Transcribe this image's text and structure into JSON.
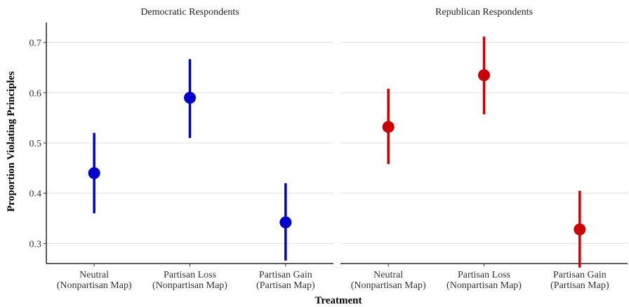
{
  "chart_data": {
    "type": "scatter",
    "subtype": "point-range",
    "ylabel": "Proportion Violating Principles",
    "xlabel": "Treatment",
    "ylim": [
      0.26,
      0.74
    ],
    "yticks": [
      0.3,
      0.4,
      0.5,
      0.6,
      0.7
    ],
    "grid": true,
    "categories": [
      [
        "Neutral",
        "(Nonpartisan Map)"
      ],
      [
        "Partisan Loss",
        "(Nonpartisan Map)"
      ],
      [
        "Partisan Gain",
        "(Partisan Map)"
      ]
    ],
    "panels": [
      {
        "title": "Democratic Respondents",
        "color": "#0000cc",
        "points": [
          {
            "estimate": 0.44,
            "lower": 0.36,
            "upper": 0.52
          },
          {
            "estimate": 0.59,
            "lower": 0.51,
            "upper": 0.667
          },
          {
            "estimate": 0.342,
            "lower": 0.266,
            "upper": 0.42
          }
        ]
      },
      {
        "title": "Republican Respondents",
        "color": "#cc0000",
        "points": [
          {
            "estimate": 0.532,
            "lower": 0.458,
            "upper": 0.608
          },
          {
            "estimate": 0.635,
            "lower": 0.557,
            "upper": 0.712
          },
          {
            "estimate": 0.328,
            "lower": 0.252,
            "upper": 0.405
          }
        ]
      }
    ]
  }
}
